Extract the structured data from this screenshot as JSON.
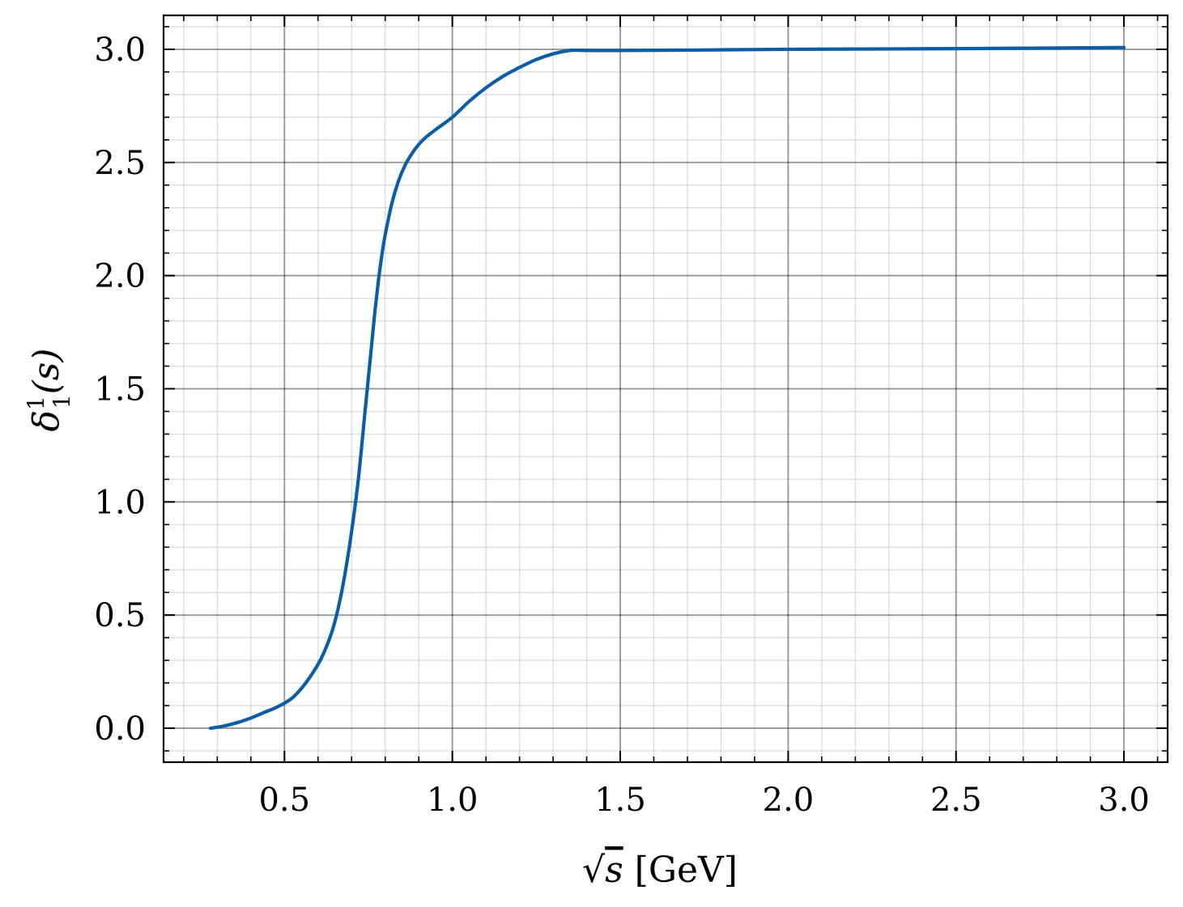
{
  "chart_data": {
    "type": "line",
    "xlabel_prefix": "√",
    "xlabel_var": "s",
    "xlabel_unit": " [GeV]",
    "ylabel_delta": "δ",
    "ylabel_sup": "1",
    "ylabel_sub": "1",
    "ylabel_arg": "(s)",
    "xlim": [
      0.14,
      3.13
    ],
    "ylim": [
      -0.15,
      3.15
    ],
    "xticks": [
      0.5,
      1.0,
      1.5,
      2.0,
      2.5,
      3.0
    ],
    "xtick_labels": [
      "0.5",
      "1.0",
      "1.5",
      "2.0",
      "2.5",
      "3.0"
    ],
    "yticks": [
      0.0,
      0.5,
      1.0,
      1.5,
      2.0,
      2.5,
      3.0
    ],
    "ytick_labels": [
      "0.0",
      "0.5",
      "1.0",
      "1.5",
      "2.0",
      "2.5",
      "3.0"
    ],
    "grid": true,
    "minor_grid": true,
    "line_color": "#0C5DA5",
    "series": [
      {
        "x": [
          0.28,
          0.32,
          0.36,
          0.4,
          0.44,
          0.48,
          0.52,
          0.55,
          0.58,
          0.61,
          0.64,
          0.66,
          0.68,
          0.7,
          0.72,
          0.74,
          0.76,
          0.77,
          0.78,
          0.79,
          0.8,
          0.82,
          0.84,
          0.86,
          0.88,
          0.9,
          0.92,
          0.95,
          1.0,
          1.05,
          1.1,
          1.15,
          1.2,
          1.25,
          1.3,
          1.35,
          1.4,
          1.5,
          1.75,
          2.0,
          2.5,
          3.0
        ],
        "y": [
          0.0,
          0.01,
          0.025,
          0.045,
          0.07,
          0.095,
          0.13,
          0.175,
          0.235,
          0.31,
          0.42,
          0.53,
          0.68,
          0.87,
          1.1,
          1.4,
          1.7,
          1.85,
          1.98,
          2.09,
          2.18,
          2.32,
          2.42,
          2.49,
          2.54,
          2.58,
          2.61,
          2.645,
          2.7,
          2.77,
          2.83,
          2.88,
          2.92,
          2.955,
          2.98,
          2.995,
          2.995,
          2.995,
          2.997,
          3.0,
          3.003,
          3.008
        ]
      }
    ]
  }
}
